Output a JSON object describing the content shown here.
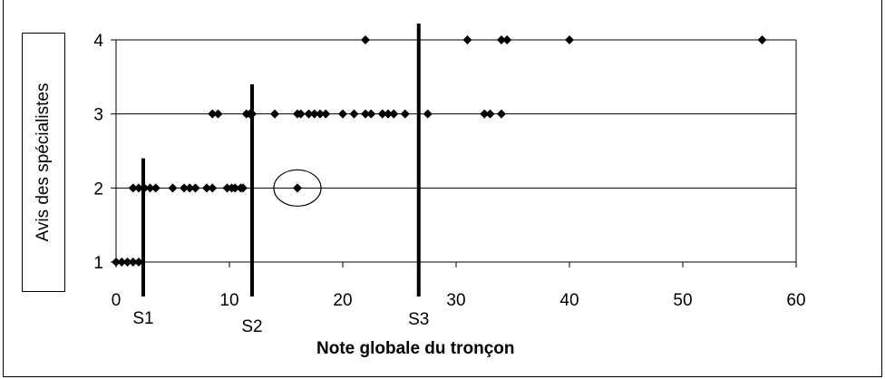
{
  "chart_data": {
    "type": "scatter",
    "xlabel": "Note globale du tronçon",
    "ylabel": "Avis des spécialistes",
    "xlim": [
      0,
      60
    ],
    "ylim": [
      1,
      4
    ],
    "x_ticks": [
      "0",
      "10",
      "20",
      "30",
      "40",
      "50",
      "60"
    ],
    "y_ticks": [
      "1",
      "2",
      "3",
      "4"
    ],
    "grid": "horizontal",
    "points": [
      {
        "x": 0,
        "y": 1
      },
      {
        "x": 0.5,
        "y": 1
      },
      {
        "x": 1,
        "y": 1
      },
      {
        "x": 1.5,
        "y": 1
      },
      {
        "x": 2,
        "y": 1
      },
      {
        "x": 1.5,
        "y": 2
      },
      {
        "x": 2,
        "y": 2
      },
      {
        "x": 2.5,
        "y": 2
      },
      {
        "x": 3,
        "y": 2
      },
      {
        "x": 3.5,
        "y": 2
      },
      {
        "x": 5,
        "y": 2
      },
      {
        "x": 6,
        "y": 2
      },
      {
        "x": 6.5,
        "y": 2
      },
      {
        "x": 7,
        "y": 2
      },
      {
        "x": 8,
        "y": 2
      },
      {
        "x": 8.5,
        "y": 2
      },
      {
        "x": 9.8,
        "y": 2
      },
      {
        "x": 10.2,
        "y": 2
      },
      {
        "x": 10.5,
        "y": 2
      },
      {
        "x": 11,
        "y": 2
      },
      {
        "x": 11.2,
        "y": 2
      },
      {
        "x": 16,
        "y": 2
      },
      {
        "x": 8.5,
        "y": 3
      },
      {
        "x": 9,
        "y": 3
      },
      {
        "x": 11.5,
        "y": 3
      },
      {
        "x": 11.8,
        "y": 3
      },
      {
        "x": 12,
        "y": 3
      },
      {
        "x": 14,
        "y": 3
      },
      {
        "x": 16,
        "y": 3
      },
      {
        "x": 16.3,
        "y": 3
      },
      {
        "x": 17,
        "y": 3
      },
      {
        "x": 17.5,
        "y": 3
      },
      {
        "x": 18,
        "y": 3
      },
      {
        "x": 18.5,
        "y": 3
      },
      {
        "x": 20,
        "y": 3
      },
      {
        "x": 21,
        "y": 3
      },
      {
        "x": 22,
        "y": 3
      },
      {
        "x": 22.5,
        "y": 3
      },
      {
        "x": 23.5,
        "y": 3
      },
      {
        "x": 24,
        "y": 3
      },
      {
        "x": 24.5,
        "y": 3
      },
      {
        "x": 25.5,
        "y": 3
      },
      {
        "x": 27.5,
        "y": 3
      },
      {
        "x": 32.5,
        "y": 3
      },
      {
        "x": 33,
        "y": 3
      },
      {
        "x": 34,
        "y": 3
      },
      {
        "x": 22,
        "y": 4
      },
      {
        "x": 31,
        "y": 4
      },
      {
        "x": 34,
        "y": 4
      },
      {
        "x": 34.5,
        "y": 4
      },
      {
        "x": 40,
        "y": 4
      },
      {
        "x": 57,
        "y": 4
      }
    ],
    "thresholds": [
      {
        "label": "S1",
        "x": 2.4,
        "y_top": 2.4
      },
      {
        "label": "S2",
        "x": 12,
        "y_top": 3.4
      },
      {
        "label": "S3",
        "x": 26.7,
        "y_top": 4.22
      }
    ],
    "highlight": {
      "x": 16,
      "y": 2
    }
  }
}
